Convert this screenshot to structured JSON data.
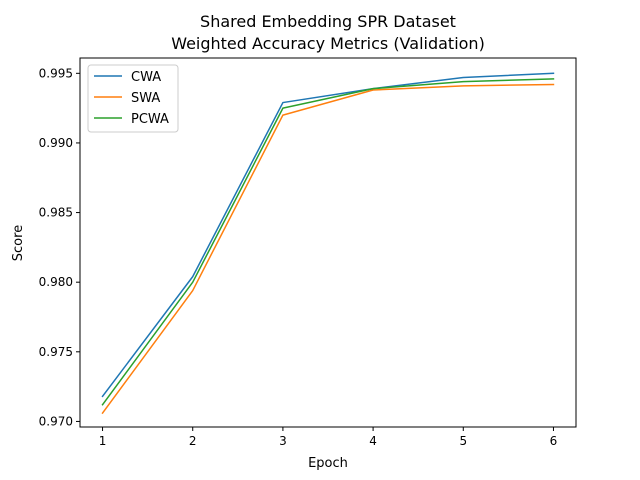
{
  "chart_data": {
    "type": "line",
    "title": "Shared Embedding SPR Dataset",
    "subtitle": "Weighted Accuracy Metrics (Validation)",
    "xlabel": "Epoch",
    "ylabel": "Score",
    "x": [
      1,
      2,
      3,
      4,
      5,
      6
    ],
    "xlim": [
      0.75,
      6.25
    ],
    "ylim": [
      0.9696,
      0.9961
    ],
    "x_ticks": [
      "1",
      "2",
      "3",
      "4",
      "5",
      "6"
    ],
    "y_ticks": [
      "0.970",
      "0.975",
      "0.980",
      "0.985",
      "0.990",
      "0.995"
    ],
    "grid": false,
    "legend_position": "top-left",
    "series": [
      {
        "name": "CWA",
        "color": "#1f77b4",
        "values": [
          0.9718,
          0.9804,
          0.9929,
          0.9939,
          0.9947,
          0.995
        ]
      },
      {
        "name": "SWA",
        "color": "#ff7f0e",
        "values": [
          0.9706,
          0.9794,
          0.992,
          0.9938,
          0.9941,
          0.9942
        ]
      },
      {
        "name": "PCWA",
        "color": "#2ca02c",
        "values": [
          0.9712,
          0.98,
          0.9925,
          0.9939,
          0.9944,
          0.9946
        ]
      }
    ]
  }
}
